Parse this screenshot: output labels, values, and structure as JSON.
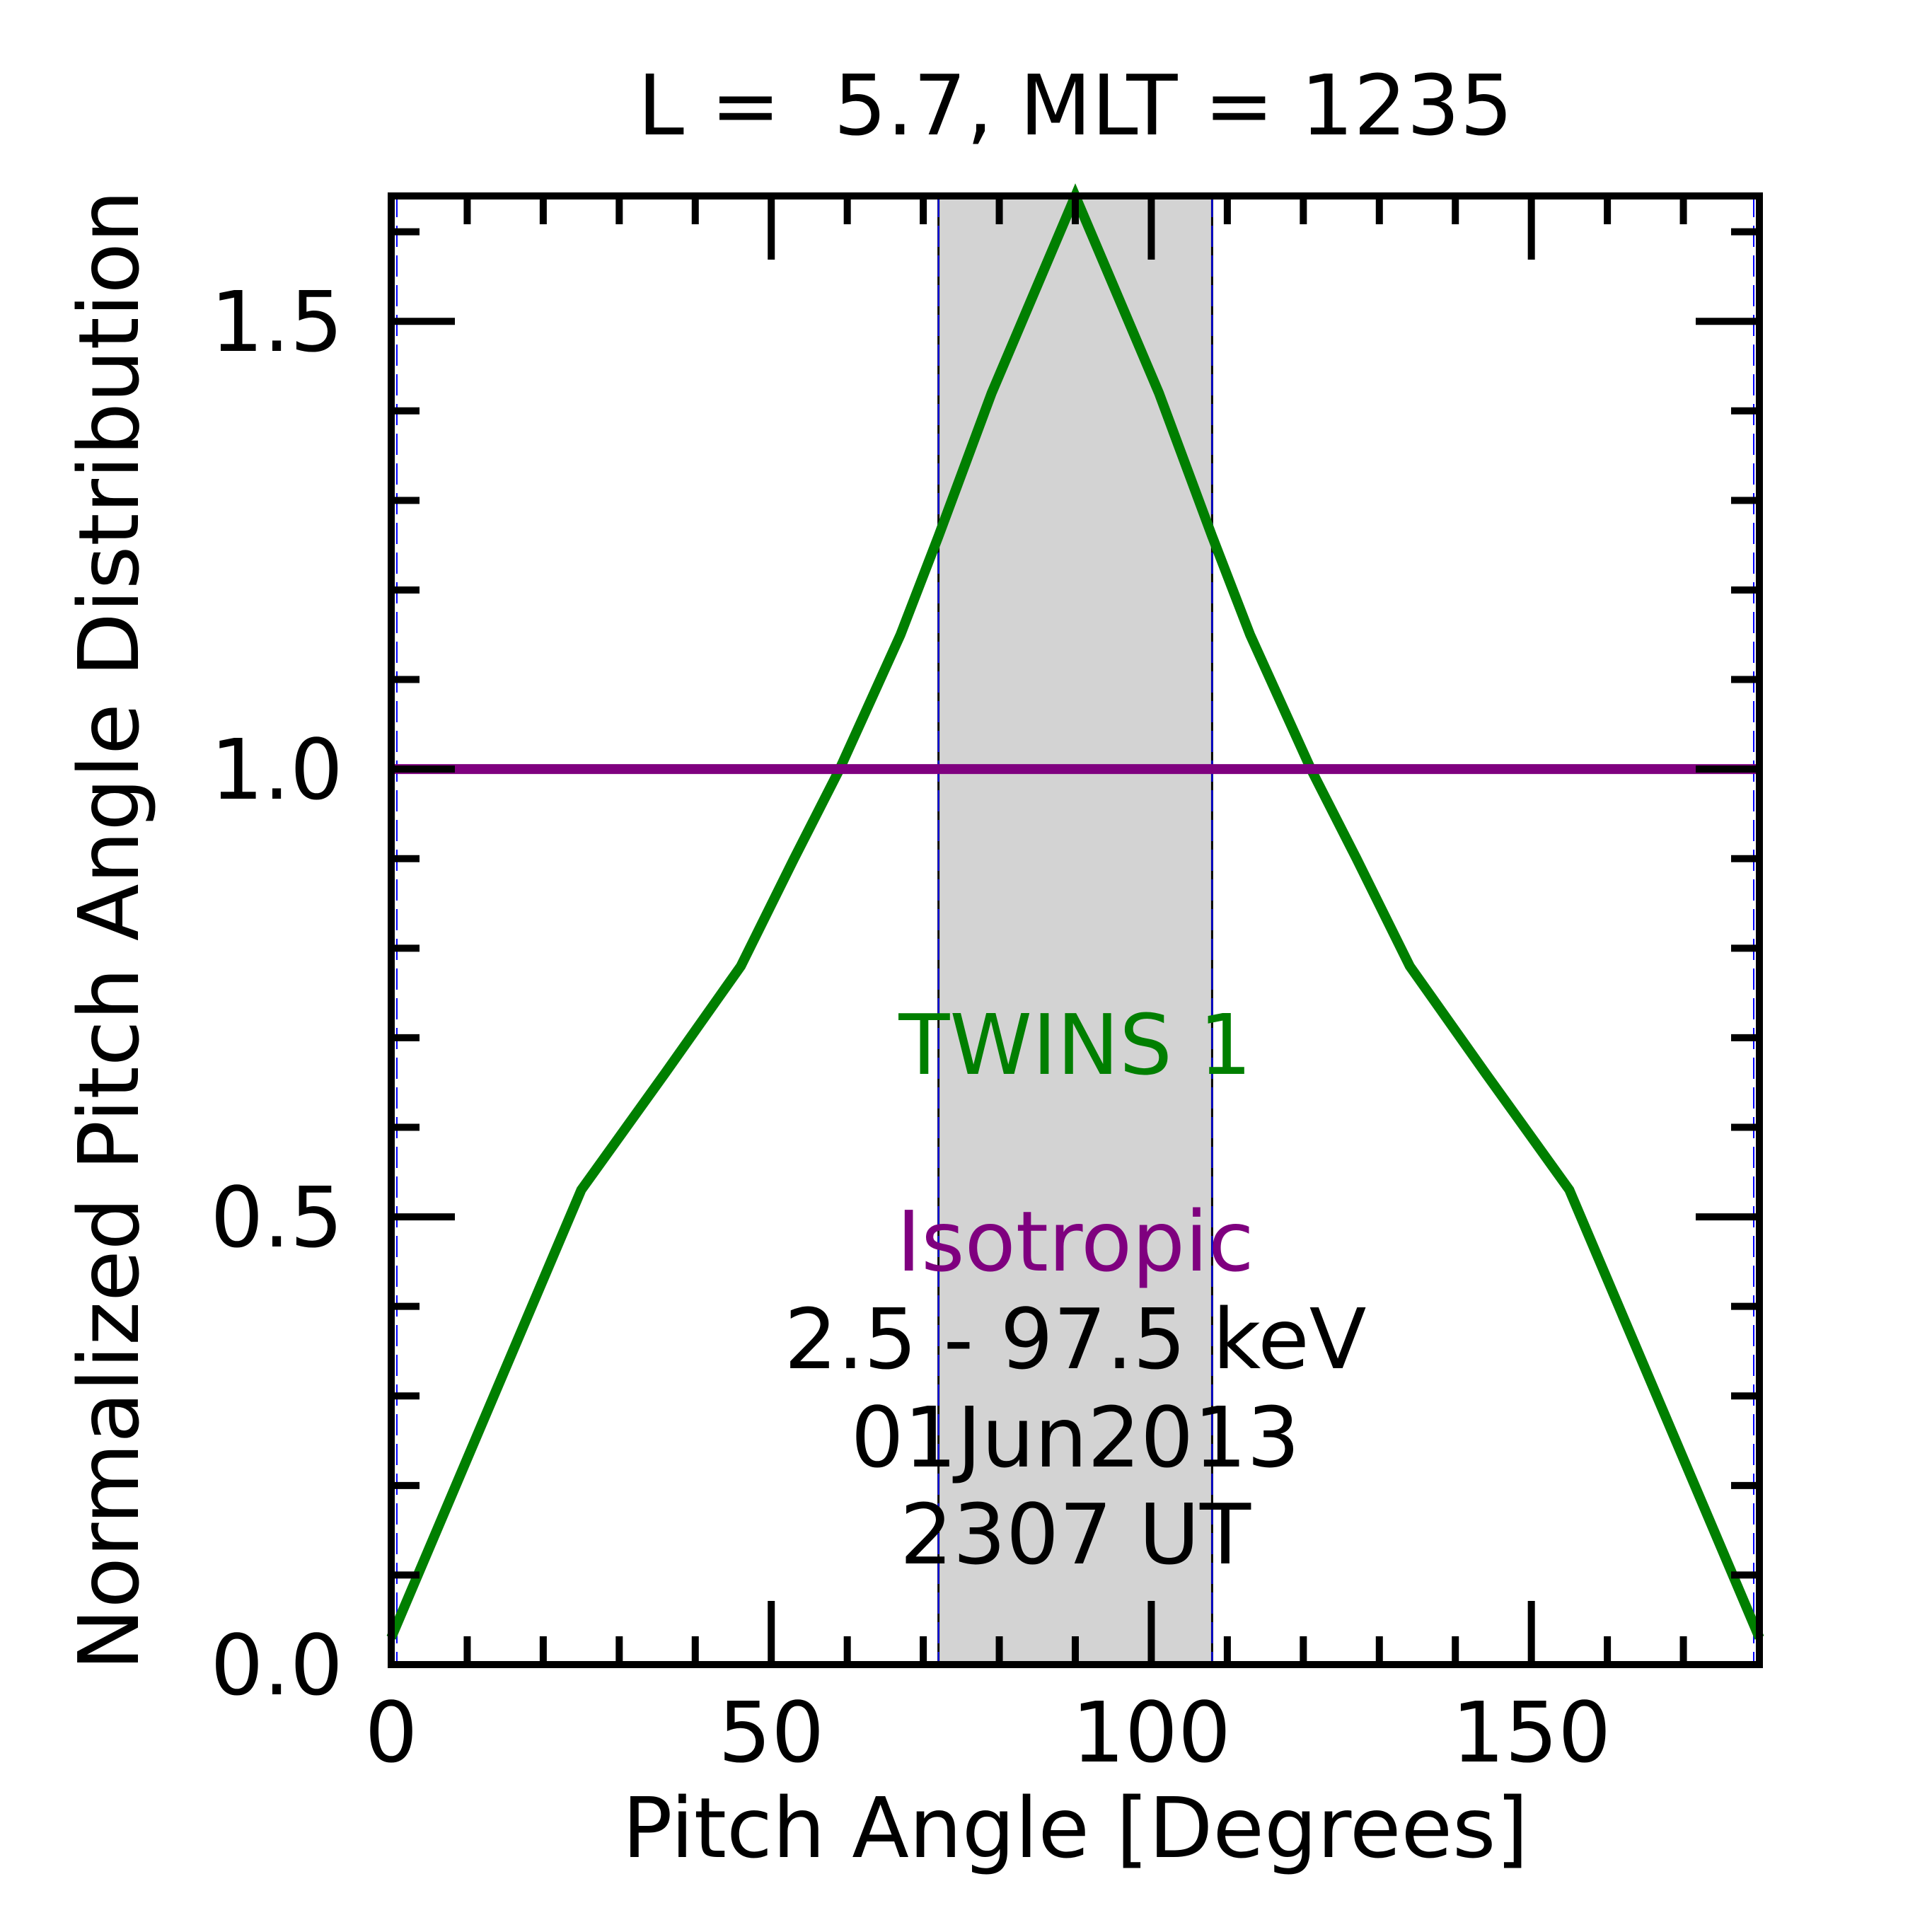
{
  "chart_data": {
    "type": "line",
    "title": "L =  5.7, MLT = 1235",
    "xlabel": "Pitch Angle [Degrees]",
    "ylabel": "Normalized Pitch Angle Distribution",
    "xlim": [
      0,
      180
    ],
    "ylim": [
      0,
      1.64
    ],
    "x_ticks": [
      0,
      50,
      100,
      150
    ],
    "x_tick_labels": [
      "0",
      "50",
      "100",
      "150"
    ],
    "x_minor_step": 10,
    "y_ticks": [
      0.0,
      0.5,
      1.0,
      1.5
    ],
    "y_tick_labels": [
      "0.0",
      "0.5",
      "1.0",
      "1.5"
    ],
    "y_minor_step": 0.1,
    "grid": false,
    "shaded_band": {
      "x_range": [
        72,
        108
      ],
      "color": "#d3d3d3"
    },
    "series": [
      {
        "name": "TWINS 1",
        "color": "#007f00",
        "x": [
          0,
          25,
          36,
          46,
          53,
          59,
          67,
          72,
          79,
          90,
          101,
          108,
          113,
          121,
          127,
          134,
          144,
          155,
          180
        ],
        "y": [
          0.03,
          0.53,
          0.66,
          0.78,
          0.9,
          1.0,
          1.15,
          1.26,
          1.42,
          1.64,
          1.42,
          1.26,
          1.15,
          1.0,
          0.9,
          0.78,
          0.66,
          0.53,
          0.03
        ]
      },
      {
        "name": "Isotropic",
        "color": "#7f007f",
        "x": [
          0,
          180
        ],
        "y": [
          1.0,
          1.0
        ]
      }
    ],
    "annotations": {
      "energy": "2.5 - 97.5 keV",
      "date": "01Jun2013",
      "time": "2307 UT"
    }
  }
}
